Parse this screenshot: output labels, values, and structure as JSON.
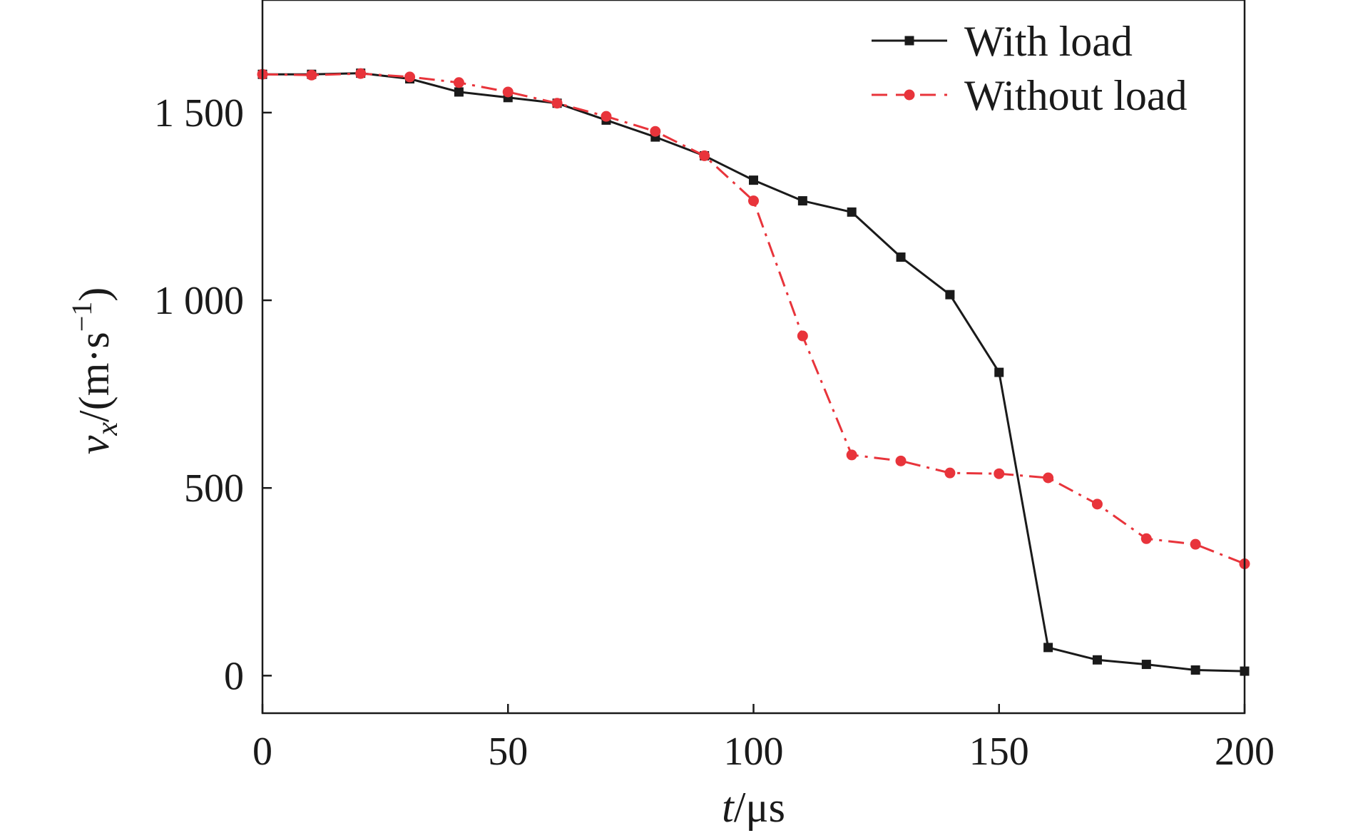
{
  "chart_data": {
    "type": "line",
    "x": [
      0,
      10,
      20,
      30,
      40,
      50,
      60,
      70,
      80,
      90,
      100,
      110,
      120,
      130,
      140,
      150,
      160,
      170,
      180,
      190,
      200
    ],
    "series": [
      {
        "name": "With load",
        "color": "#1a1a1a",
        "marker": "square",
        "line_style": "solid",
        "values": [
          1602,
          1602,
          1605,
          1590,
          1555,
          1540,
          1525,
          1480,
          1435,
          1385,
          1320,
          1265,
          1235,
          1115,
          1015,
          808,
          75,
          42,
          30,
          15,
          12
        ]
      },
      {
        "name": "Without load",
        "color": "#e8343b",
        "marker": "circle",
        "line_style": "dash-dot",
        "values": [
          1602,
          1600,
          1604,
          1595,
          1580,
          1555,
          1525,
          1490,
          1450,
          1385,
          1265,
          905,
          588,
          572,
          540,
          538,
          527,
          457,
          365,
          350,
          298
        ]
      }
    ],
    "xlabel_var": "t",
    "xlabel_unit": "/μs",
    "ylabel_var": "v",
    "ylabel_sub": "x",
    "ylabel_unit_main": "/(m·s",
    "ylabel_unit_sup": "−1",
    "ylabel_unit_close": ")",
    "xlim": [
      0,
      200
    ],
    "ylim": [
      -100,
      1800
    ],
    "xticks": [
      0,
      50,
      100,
      150,
      200
    ],
    "xtick_labels": [
      "0",
      "50",
      "100",
      "150",
      "200"
    ],
    "yticks": [
      0,
      500,
      1000,
      1500
    ],
    "ytick_labels": [
      "0",
      "500",
      "1 000",
      "1 500"
    ],
    "legend_position": "top-right",
    "grid": false
  }
}
